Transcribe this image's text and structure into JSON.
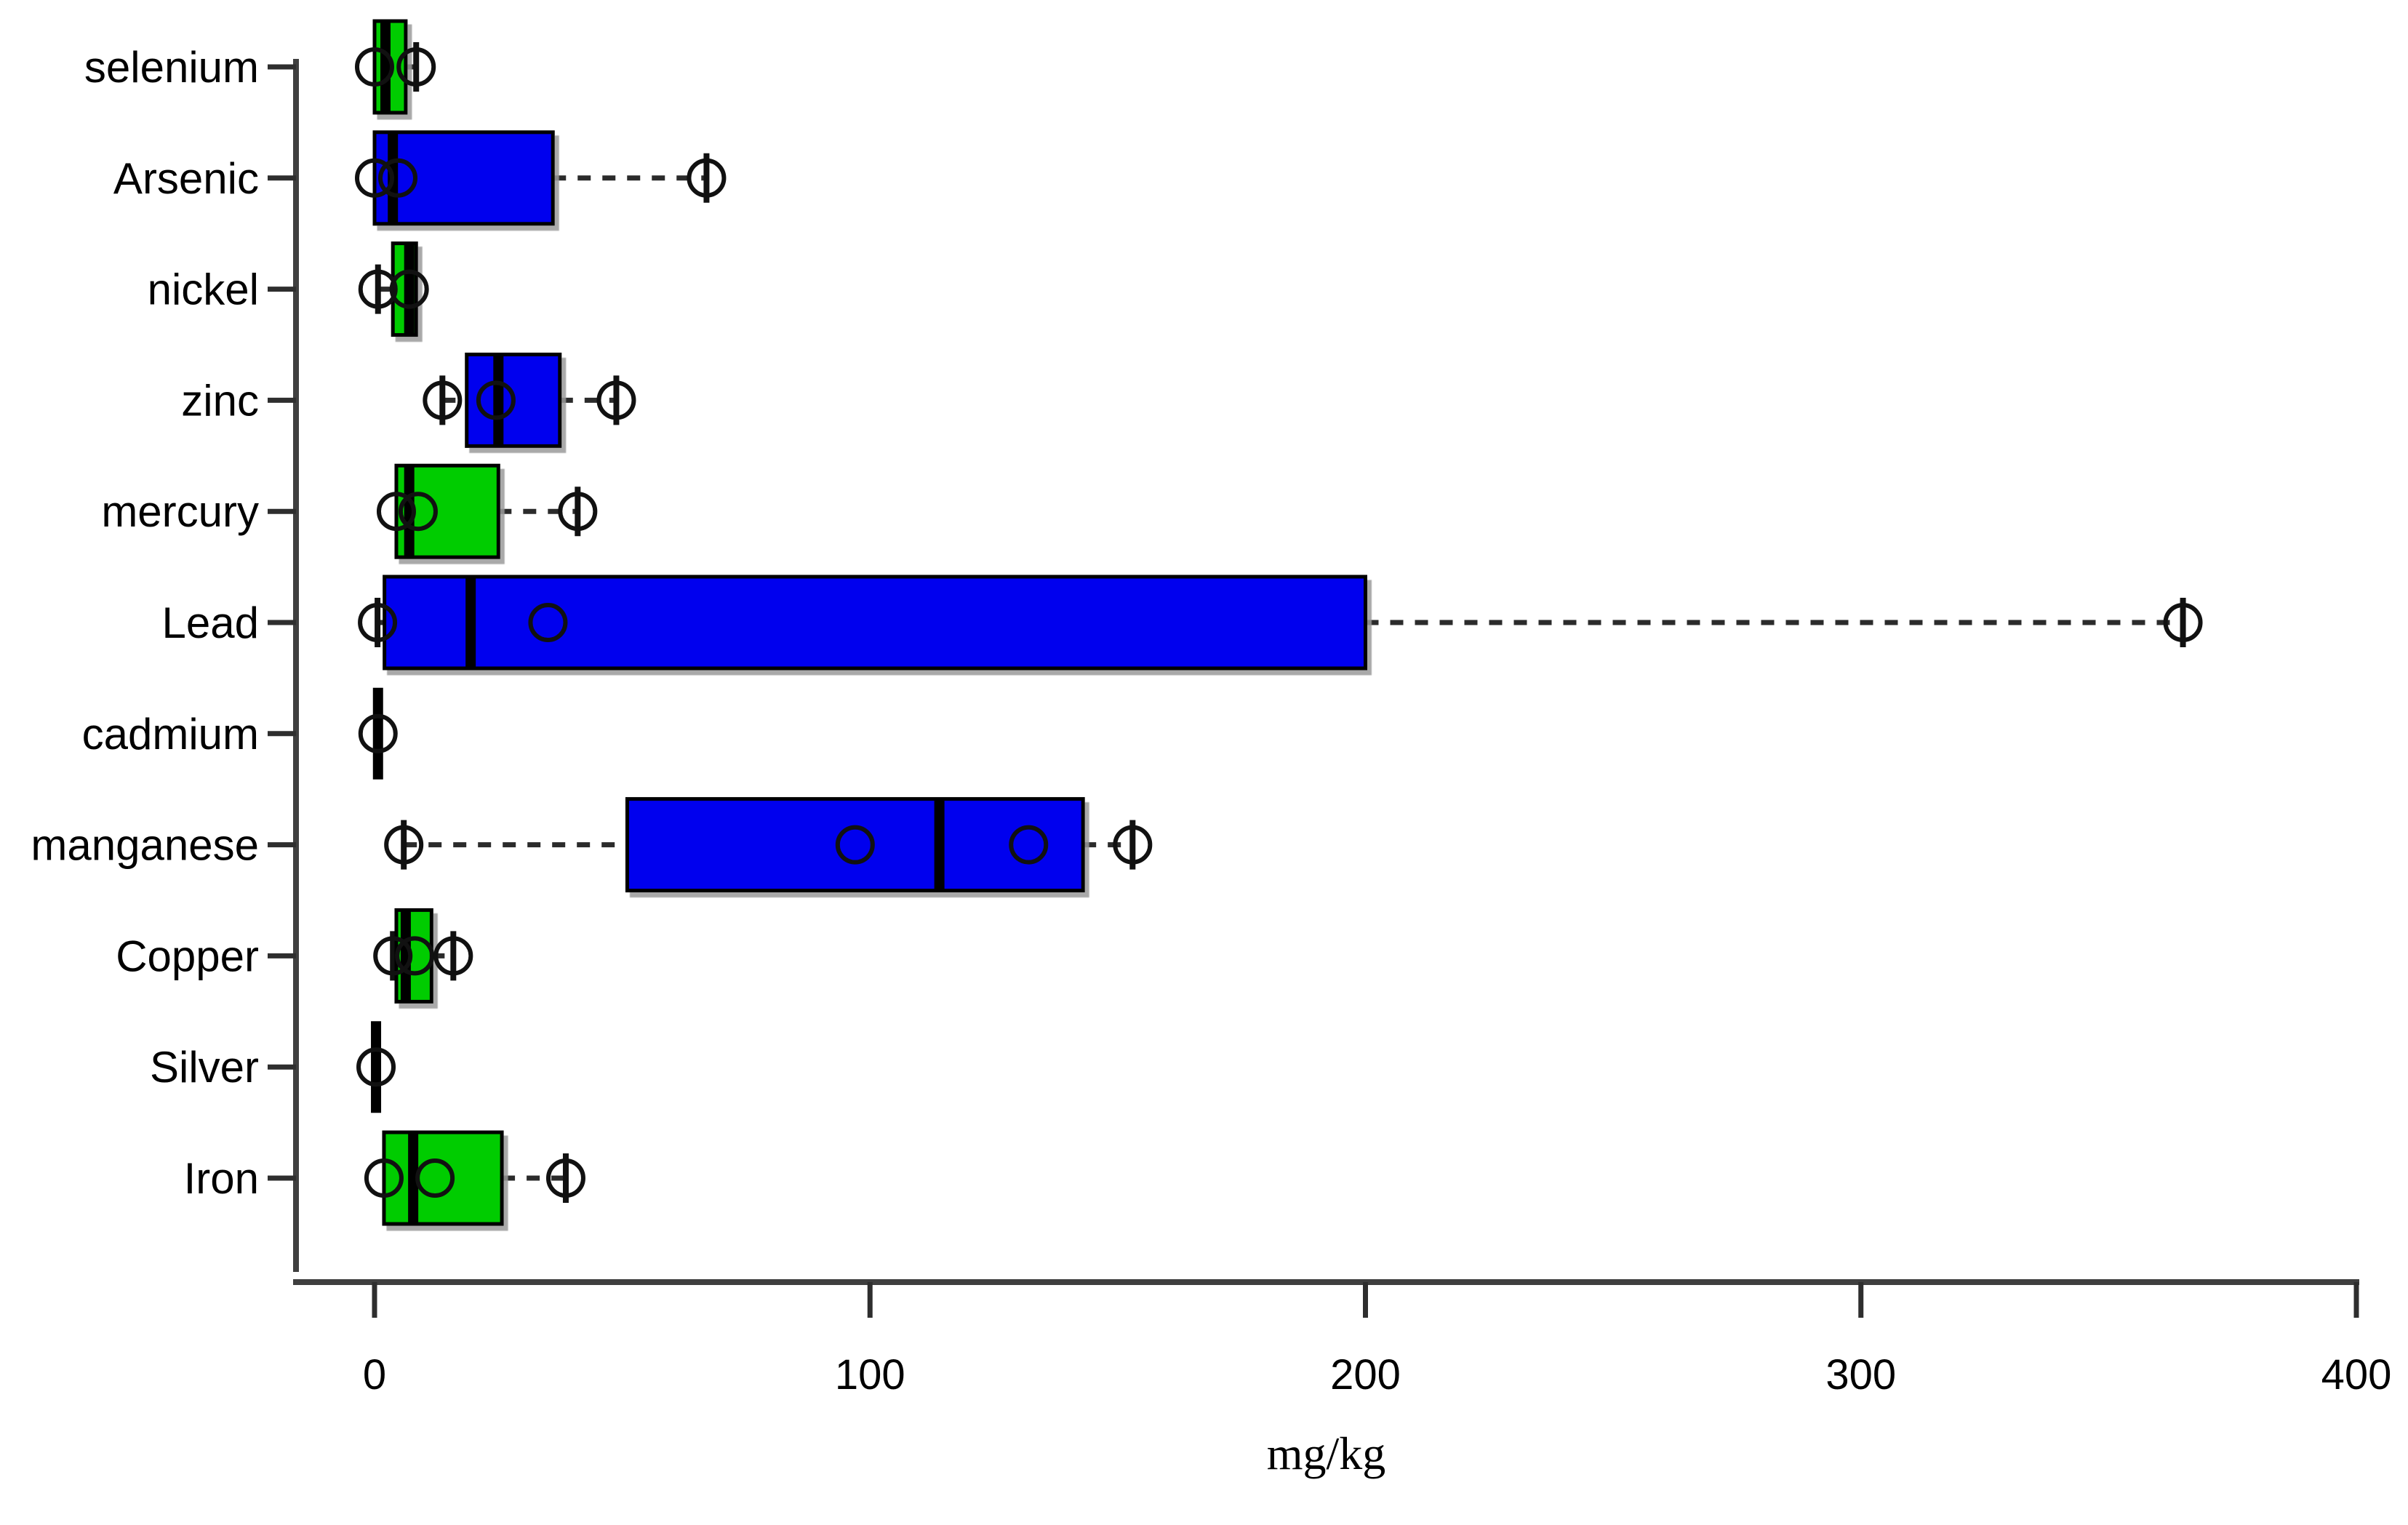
{
  "chart_data": {
    "type": "boxplot",
    "orientation": "horizontal",
    "title": "",
    "xlabel": "mg/kg",
    "ylabel": "",
    "xlim": [
      0,
      400
    ],
    "x_ticks": [
      0,
      100,
      200,
      300,
      400
    ],
    "grid": false,
    "legend": "none",
    "categories_top_to_bottom": [
      "selenium",
      "Arsenic",
      "nickel",
      "zinc",
      "mercury",
      "Lead",
      "cadmium",
      "manganese",
      "Copper",
      "Silver",
      "Iron"
    ],
    "series": [
      {
        "name": "selenium",
        "color": "#00CC00",
        "q1": 0,
        "median": 2.2,
        "q3": 6.3,
        "whisker_low": 0,
        "whisker_high": 8.4,
        "points": [
          0,
          8.4
        ]
      },
      {
        "name": "Arsenic",
        "color": "#0000EE",
        "q1": 0,
        "median": 3.7,
        "q3": 36,
        "whisker_low": 0,
        "whisker_high": 67,
        "points": [
          0,
          4.7,
          67
        ]
      },
      {
        "name": "nickel",
        "color": "#00CC00",
        "q1": 3.7,
        "median": 7,
        "q3": 8.4,
        "whisker_low": 0.7,
        "whisker_high": 8.4,
        "points": [
          0.7,
          7
        ]
      },
      {
        "name": "zinc",
        "color": "#0000EE",
        "q1": 18.6,
        "median": 25,
        "q3": 37.4,
        "whisker_low": 13.7,
        "whisker_high": 48.8,
        "points": [
          13.7,
          24.5,
          48.8
        ]
      },
      {
        "name": "mercury",
        "color": "#00CC00",
        "q1": 4.4,
        "median": 7,
        "q3": 25,
        "whisker_low": 4.4,
        "whisker_high": 41,
        "points": [
          4.4,
          8.8,
          41
        ]
      },
      {
        "name": "Lead",
        "color": "#0000EE",
        "q1": 2,
        "median": 19.4,
        "q3": 200,
        "whisker_low": 0.6,
        "whisker_high": 365,
        "points": [
          0.6,
          35,
          365
        ]
      },
      {
        "name": "cadmium",
        "color": "#000000",
        "q1": 0.5,
        "median": 0.7,
        "q3": 0.9,
        "whisker_low": 0.5,
        "whisker_high": 0.9,
        "points": [
          0.7
        ]
      },
      {
        "name": "manganese",
        "color": "#0000EE",
        "q1": 51,
        "median": 114,
        "q3": 143,
        "whisker_low": 5.9,
        "whisker_high": 153,
        "points": [
          5.9,
          97,
          132,
          153
        ]
      },
      {
        "name": "Copper",
        "color": "#00CC00",
        "q1": 4.4,
        "median": 6.3,
        "q3": 11.5,
        "whisker_low": 3.7,
        "whisker_high": 15.9,
        "points": [
          3.7,
          8.1,
          15.9
        ]
      },
      {
        "name": "Silver",
        "color": "#000000",
        "q1": 0.2,
        "median": 0.3,
        "q3": 0.5,
        "whisker_low": 0.2,
        "whisker_high": 0.5,
        "points": [
          0.3
        ]
      },
      {
        "name": "Iron",
        "color": "#00CC00",
        "q1": 1.9,
        "median": 7.8,
        "q3": 25.7,
        "whisker_low": 1.9,
        "whisker_high": 38.6,
        "points": [
          1.9,
          12.2,
          38.6
        ]
      }
    ]
  },
  "style_colors": {
    "box_green": "#00CC00",
    "box_blue": "#0000EE",
    "box_border": "#000000",
    "axis": "#3f3f3f",
    "background": "#ffffff"
  }
}
